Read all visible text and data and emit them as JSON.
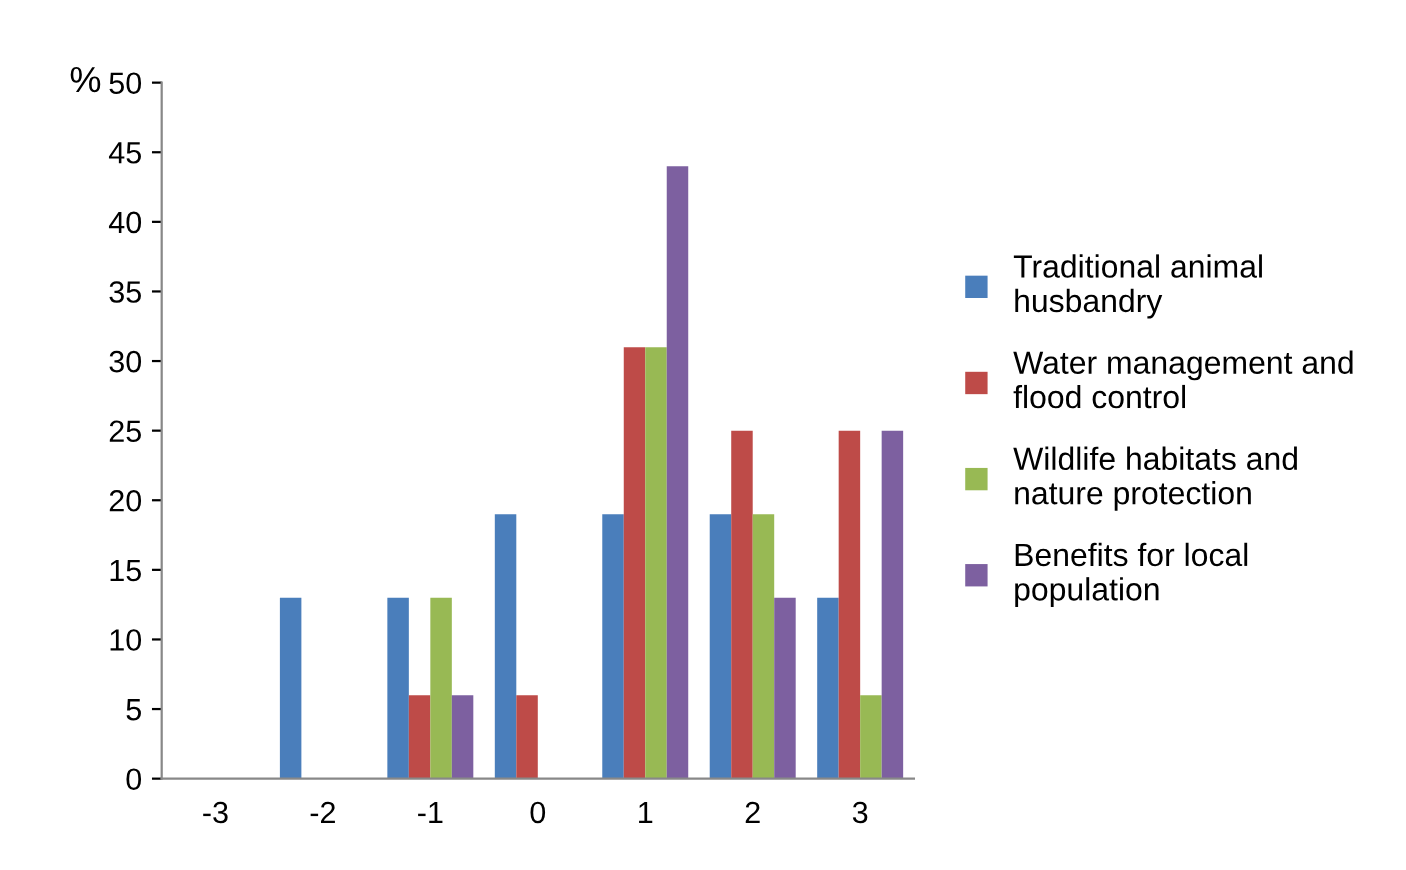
{
  "chart_data": {
    "type": "bar",
    "ylabel": "%",
    "categories": [
      "-3",
      "-2",
      "-1",
      "0",
      "1",
      "2",
      "3"
    ],
    "series": [
      {
        "name": "Traditional animal\nhusbandry",
        "color": "#4a7ebb",
        "values": [
          0,
          13,
          13,
          19,
          19,
          19,
          13
        ]
      },
      {
        "name": "Water management and\nflood control",
        "color": "#be4b48",
        "values": [
          0,
          0,
          6,
          6,
          31,
          25,
          25
        ]
      },
      {
        "name": "Wildlife habitats and\nnature protection",
        "color": "#98b954",
        "values": [
          0,
          0,
          13,
          0,
          31,
          19,
          6
        ]
      },
      {
        "name": "Benefits for local\npopulation",
        "color": "#7d60a0",
        "values": [
          0,
          0,
          6,
          0,
          44,
          13,
          25
        ]
      }
    ],
    "ylim": [
      0,
      50
    ],
    "yticks": [
      0,
      5,
      10,
      15,
      20,
      25,
      30,
      35,
      40,
      45,
      50
    ],
    "grid": false,
    "legend": "right"
  }
}
